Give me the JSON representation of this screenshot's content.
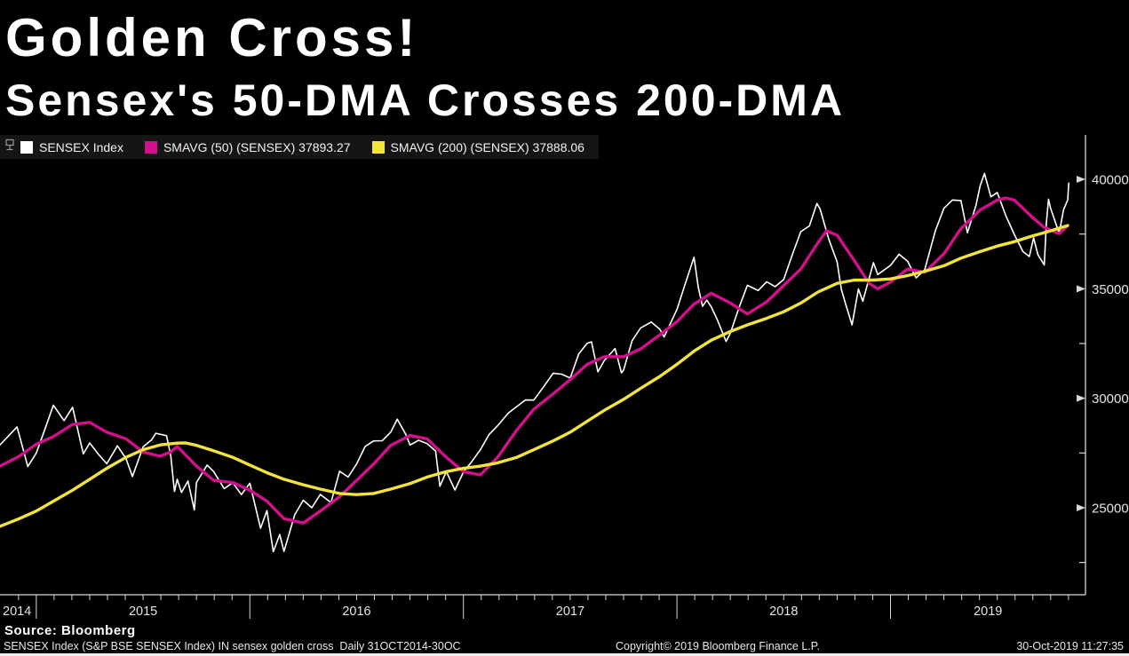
{
  "title": "Golden Cross!",
  "subtitle": "Sensex's 50-DMA Crosses 200-DMA",
  "legend": {
    "items": [
      {
        "label": "SENSEX Index",
        "color": "#FFFFFF"
      },
      {
        "label": "SMAVG (50) (SENSEX) 37893.27",
        "color": "#D40F8C"
      },
      {
        "label": "SMAVG (200) (SENSEX) 37888.06",
        "color": "#F3E43B"
      }
    ]
  },
  "footer": {
    "source": "Source: Bloomberg",
    "description": "SENSEX Index (S&P BSE SENSEX Index) IN sensex golden cross  Daily 31OCT2014-30OC",
    "copyright": "Copyright© 2019 Bloomberg Finance L.P.",
    "timestamp": "30-Oct-2019 11:27:35"
  },
  "colors": {
    "background": "#000000",
    "axis": "#D8D8D8",
    "sensex": "#FFFFFF",
    "smavg50": "#D40F8C",
    "smavg200": "#F3E43B"
  },
  "chart_data": {
    "type": "line",
    "title": "Golden Cross! — Sensex's 50-DMA Crosses 200-DMA",
    "x_unit": "decimal_year",
    "x_range": [
      2014.83,
      2019.913
    ],
    "ylim": [
      21000,
      42000
    ],
    "grid": false,
    "legend_position": "top-left",
    "y_axis": {
      "side": "right",
      "major_ticks": [
        40000,
        35000,
        30000,
        25000
      ],
      "minor_ticks": [
        37500,
        32500,
        27500,
        22500
      ]
    },
    "x_axis": {
      "year_labels": [
        "2014",
        "2015",
        "2016",
        "2017",
        "2018",
        "2019"
      ],
      "years": [
        2014,
        2015,
        2016,
        2017,
        2018,
        2019
      ],
      "minor_tick_interval": "monthly"
    },
    "series": [
      {
        "id": "sensex-line",
        "name": "SENSEX Index",
        "color": "#FFFFFF",
        "width": 1.6,
        "points": [
          [
            2014.83,
            27870
          ],
          [
            2014.91,
            28690
          ],
          [
            2014.96,
            26880
          ],
          [
            2015.0,
            27500
          ],
          [
            2015.04,
            28580
          ],
          [
            2015.08,
            29680
          ],
          [
            2015.13,
            28980
          ],
          [
            2015.17,
            29590
          ],
          [
            2015.22,
            27460
          ],
          [
            2015.25,
            27960
          ],
          [
            2015.29,
            27450
          ],
          [
            2015.33,
            27010
          ],
          [
            2015.38,
            27830
          ],
          [
            2015.42,
            27250
          ],
          [
            2015.45,
            26425
          ],
          [
            2015.5,
            27780
          ],
          [
            2015.54,
            28100
          ],
          [
            2015.56,
            28400
          ],
          [
            2015.61,
            28290
          ],
          [
            2015.63,
            27360
          ],
          [
            2015.647,
            25740
          ],
          [
            2015.66,
            26300
          ],
          [
            2015.68,
            25700
          ],
          [
            2015.71,
            26220
          ],
          [
            2015.74,
            24900
          ],
          [
            2015.75,
            26155
          ],
          [
            2015.8,
            26950
          ],
          [
            2015.83,
            26657
          ],
          [
            2015.88,
            25870
          ],
          [
            2015.92,
            26146
          ],
          [
            2015.96,
            25600
          ],
          [
            2016.0,
            26118
          ],
          [
            2016.05,
            24060
          ],
          [
            2016.08,
            24870
          ],
          [
            2016.11,
            22990
          ],
          [
            2016.14,
            23780
          ],
          [
            2016.16,
            23002
          ],
          [
            2016.21,
            24680
          ],
          [
            2016.25,
            25342
          ],
          [
            2016.29,
            25000
          ],
          [
            2016.33,
            25607
          ],
          [
            2016.38,
            25230
          ],
          [
            2016.42,
            26668
          ],
          [
            2016.46,
            26400
          ],
          [
            2016.5,
            27000
          ],
          [
            2016.54,
            27800
          ],
          [
            2016.58,
            28052
          ],
          [
            2016.62,
            28060
          ],
          [
            2016.66,
            28452
          ],
          [
            2016.69,
            29045
          ],
          [
            2016.73,
            28350
          ],
          [
            2016.75,
            27866
          ],
          [
            2016.79,
            28080
          ],
          [
            2016.83,
            27930
          ],
          [
            2016.87,
            27590
          ],
          [
            2016.89,
            25980
          ],
          [
            2016.92,
            26653
          ],
          [
            2016.96,
            25807
          ],
          [
            2017.0,
            26626
          ],
          [
            2017.04,
            27120
          ],
          [
            2017.08,
            27656
          ],
          [
            2017.12,
            28340
          ],
          [
            2017.16,
            28743
          ],
          [
            2017.21,
            29320
          ],
          [
            2017.25,
            29621
          ],
          [
            2017.29,
            29920
          ],
          [
            2017.33,
            29918
          ],
          [
            2017.38,
            30580
          ],
          [
            2017.42,
            31146
          ],
          [
            2017.46,
            31100
          ],
          [
            2017.5,
            30922
          ],
          [
            2017.54,
            32020
          ],
          [
            2017.58,
            32515
          ],
          [
            2017.6,
            32575
          ],
          [
            2017.63,
            31210
          ],
          [
            2017.66,
            31730
          ],
          [
            2017.71,
            32272
          ],
          [
            2017.74,
            31160
          ],
          [
            2017.75,
            31284
          ],
          [
            2017.79,
            32630
          ],
          [
            2017.83,
            33213
          ],
          [
            2017.88,
            33480
          ],
          [
            2017.92,
            33149
          ],
          [
            2017.94,
            32800
          ],
          [
            2018.0,
            34057
          ],
          [
            2018.04,
            35260
          ],
          [
            2018.08,
            36443
          ],
          [
            2018.1,
            35070
          ],
          [
            2018.12,
            34200
          ],
          [
            2018.14,
            34480
          ],
          [
            2018.16,
            34184
          ],
          [
            2018.19,
            33560
          ],
          [
            2018.23,
            32597
          ],
          [
            2018.25,
            32969
          ],
          [
            2018.29,
            34120
          ],
          [
            2018.33,
            35160
          ],
          [
            2018.38,
            34920
          ],
          [
            2018.42,
            35322
          ],
          [
            2018.46,
            35100
          ],
          [
            2018.5,
            35423
          ],
          [
            2018.54,
            36550
          ],
          [
            2018.58,
            37607
          ],
          [
            2018.62,
            37870
          ],
          [
            2018.655,
            38896
          ],
          [
            2018.67,
            38645
          ],
          [
            2018.71,
            37290
          ],
          [
            2018.75,
            36227
          ],
          [
            2018.77,
            34970
          ],
          [
            2018.79,
            34300
          ],
          [
            2018.82,
            33349
          ],
          [
            2018.85,
            34990
          ],
          [
            2018.87,
            34430
          ],
          [
            2018.92,
            36194
          ],
          [
            2018.94,
            35650
          ],
          [
            2019.0,
            36068
          ],
          [
            2019.04,
            36580
          ],
          [
            2019.08,
            36257
          ],
          [
            2019.12,
            35500
          ],
          [
            2019.16,
            35867
          ],
          [
            2019.21,
            37650
          ],
          [
            2019.25,
            38673
          ],
          [
            2019.29,
            39055
          ],
          [
            2019.33,
            39032
          ],
          [
            2019.36,
            37560
          ],
          [
            2019.4,
            38810
          ],
          [
            2019.42,
            39714
          ],
          [
            2019.44,
            40268
          ],
          [
            2019.47,
            39200
          ],
          [
            2019.5,
            39395
          ],
          [
            2019.54,
            38340
          ],
          [
            2019.58,
            37481
          ],
          [
            2019.62,
            36700
          ],
          [
            2019.65,
            36473
          ],
          [
            2019.67,
            37330
          ],
          [
            2019.69,
            36563
          ],
          [
            2019.72,
            36093
          ],
          [
            2019.73,
            38015
          ],
          [
            2019.74,
            39090
          ],
          [
            2019.75,
            38667
          ],
          [
            2019.77,
            38107
          ],
          [
            2019.79,
            37531
          ],
          [
            2019.81,
            38599
          ],
          [
            2019.83,
            39058
          ],
          [
            2019.835,
            39831
          ]
        ]
      },
      {
        "id": "smavg50-line",
        "name": "SMAVG (50) (SENSEX)",
        "last_value": 37893.27,
        "color": "#D40F8C",
        "width": 3.4,
        "points": [
          [
            2014.83,
            26900
          ],
          [
            2014.92,
            27350
          ],
          [
            2015.0,
            27900
          ],
          [
            2015.08,
            28250
          ],
          [
            2015.17,
            28800
          ],
          [
            2015.25,
            28900
          ],
          [
            2015.33,
            28450
          ],
          [
            2015.42,
            28150
          ],
          [
            2015.5,
            27550
          ],
          [
            2015.58,
            27350
          ],
          [
            2015.63,
            27550
          ],
          [
            2015.66,
            27800
          ],
          [
            2015.75,
            26900
          ],
          [
            2015.83,
            26250
          ],
          [
            2015.92,
            26150
          ],
          [
            2016.0,
            25800
          ],
          [
            2016.08,
            25300
          ],
          [
            2016.16,
            24500
          ],
          [
            2016.25,
            24300
          ],
          [
            2016.33,
            24850
          ],
          [
            2016.42,
            25500
          ],
          [
            2016.5,
            26250
          ],
          [
            2016.58,
            27000
          ],
          [
            2016.66,
            27850
          ],
          [
            2016.75,
            28300
          ],
          [
            2016.83,
            28150
          ],
          [
            2016.92,
            27300
          ],
          [
            2017.0,
            26650
          ],
          [
            2017.08,
            26500
          ],
          [
            2017.16,
            27300
          ],
          [
            2017.25,
            28550
          ],
          [
            2017.33,
            29500
          ],
          [
            2017.42,
            30200
          ],
          [
            2017.5,
            30850
          ],
          [
            2017.58,
            31550
          ],
          [
            2017.66,
            31900
          ],
          [
            2017.75,
            31900
          ],
          [
            2017.83,
            32250
          ],
          [
            2017.92,
            32900
          ],
          [
            2018.0,
            33500
          ],
          [
            2018.08,
            34300
          ],
          [
            2018.16,
            34800
          ],
          [
            2018.25,
            34350
          ],
          [
            2018.33,
            33850
          ],
          [
            2018.42,
            34400
          ],
          [
            2018.5,
            35150
          ],
          [
            2018.58,
            35900
          ],
          [
            2018.66,
            37100
          ],
          [
            2018.7,
            37650
          ],
          [
            2018.75,
            37450
          ],
          [
            2018.83,
            36300
          ],
          [
            2018.9,
            35250
          ],
          [
            2018.94,
            35000
          ],
          [
            2019.0,
            35300
          ],
          [
            2019.08,
            35900
          ],
          [
            2019.16,
            35750
          ],
          [
            2019.25,
            36600
          ],
          [
            2019.33,
            37750
          ],
          [
            2019.42,
            38600
          ],
          [
            2019.5,
            39050
          ],
          [
            2019.54,
            39150
          ],
          [
            2019.58,
            39050
          ],
          [
            2019.66,
            38300
          ],
          [
            2019.72,
            37800
          ],
          [
            2019.79,
            37520
          ],
          [
            2019.83,
            37893
          ]
        ]
      },
      {
        "id": "smavg200-line",
        "name": "SMAVG (200) (SENSEX)",
        "last_value": 37888.06,
        "color": "#F3E43B",
        "width": 3.4,
        "points": [
          [
            2014.83,
            24150
          ],
          [
            2014.92,
            24500
          ],
          [
            2015.0,
            24850
          ],
          [
            2015.08,
            25300
          ],
          [
            2015.17,
            25800
          ],
          [
            2015.25,
            26300
          ],
          [
            2015.33,
            26800
          ],
          [
            2015.42,
            27300
          ],
          [
            2015.5,
            27650
          ],
          [
            2015.58,
            27870
          ],
          [
            2015.66,
            27950
          ],
          [
            2015.7,
            27960
          ],
          [
            2015.75,
            27850
          ],
          [
            2015.83,
            27600
          ],
          [
            2015.92,
            27300
          ],
          [
            2016.0,
            26950
          ],
          [
            2016.08,
            26600
          ],
          [
            2016.16,
            26300
          ],
          [
            2016.25,
            26050
          ],
          [
            2016.33,
            25850
          ],
          [
            2016.42,
            25650
          ],
          [
            2016.5,
            25600
          ],
          [
            2016.58,
            25650
          ],
          [
            2016.66,
            25850
          ],
          [
            2016.75,
            26100
          ],
          [
            2016.83,
            26400
          ],
          [
            2016.92,
            26650
          ],
          [
            2017.0,
            26800
          ],
          [
            2017.08,
            26900
          ],
          [
            2017.16,
            27050
          ],
          [
            2017.25,
            27300
          ],
          [
            2017.33,
            27650
          ],
          [
            2017.42,
            28050
          ],
          [
            2017.5,
            28450
          ],
          [
            2017.58,
            28950
          ],
          [
            2017.66,
            29450
          ],
          [
            2017.75,
            29950
          ],
          [
            2017.83,
            30450
          ],
          [
            2017.92,
            31000
          ],
          [
            2018.0,
            31550
          ],
          [
            2018.08,
            32150
          ],
          [
            2018.16,
            32650
          ],
          [
            2018.25,
            33050
          ],
          [
            2018.33,
            33350
          ],
          [
            2018.42,
            33650
          ],
          [
            2018.5,
            33950
          ],
          [
            2018.58,
            34350
          ],
          [
            2018.66,
            34850
          ],
          [
            2018.75,
            35250
          ],
          [
            2018.83,
            35400
          ],
          [
            2018.92,
            35400
          ],
          [
            2019.0,
            35450
          ],
          [
            2019.08,
            35600
          ],
          [
            2019.16,
            35800
          ],
          [
            2019.25,
            36050
          ],
          [
            2019.33,
            36400
          ],
          [
            2019.42,
            36700
          ],
          [
            2019.5,
            36950
          ],
          [
            2019.58,
            37150
          ],
          [
            2019.66,
            37400
          ],
          [
            2019.75,
            37650
          ],
          [
            2019.83,
            37888
          ]
        ]
      }
    ]
  }
}
